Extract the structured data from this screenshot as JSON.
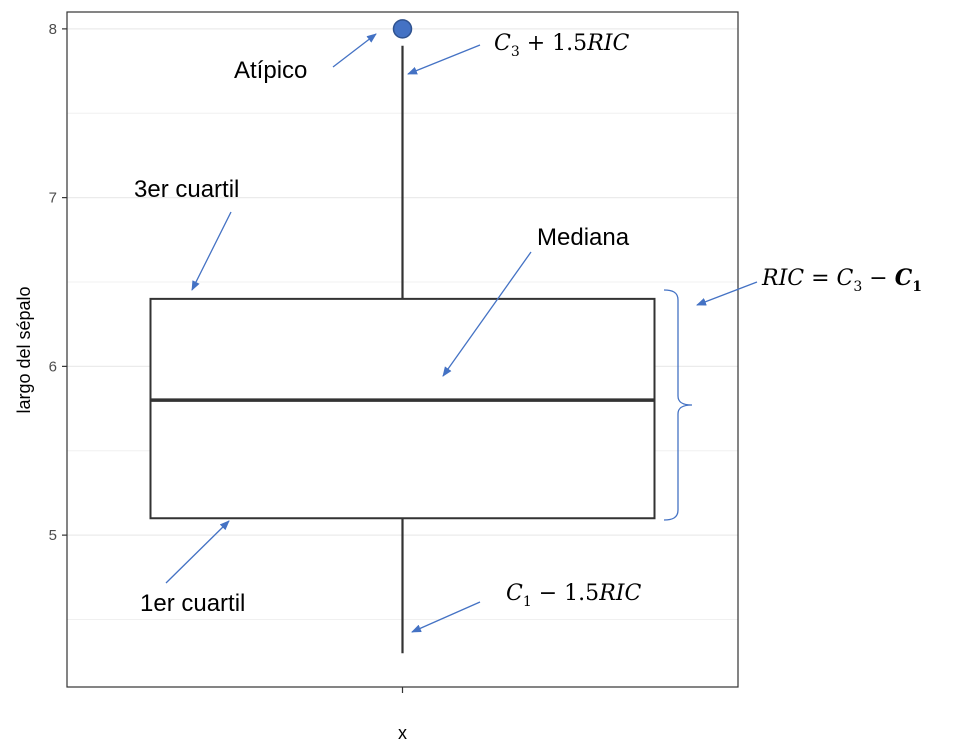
{
  "chart_data": {
    "type": "box",
    "x_categories": [
      "x"
    ],
    "ylabel": "largo del sépalo",
    "xlabel": "",
    "ylim": [
      4.1,
      8.1
    ],
    "yticks": [
      5,
      6,
      7,
      8
    ],
    "grid": true,
    "box": {
      "min_whisker": 4.3,
      "q1": 5.1,
      "median": 5.8,
      "q3": 6.4,
      "max_whisker": 7.9,
      "outliers": [
        8.0
      ]
    },
    "outlier_color": "#4472c4",
    "annotation_color": "#4472c4",
    "annotations": {
      "outlier": "Atípico",
      "upper_fence": "C3 + 1.5RIC",
      "q3": "3er cuartil",
      "median": "Mediana",
      "iqr": "RIC = C3 − C1",
      "q1": "1er cuartil",
      "lower_fence": "C1 − 1.5RIC"
    }
  }
}
